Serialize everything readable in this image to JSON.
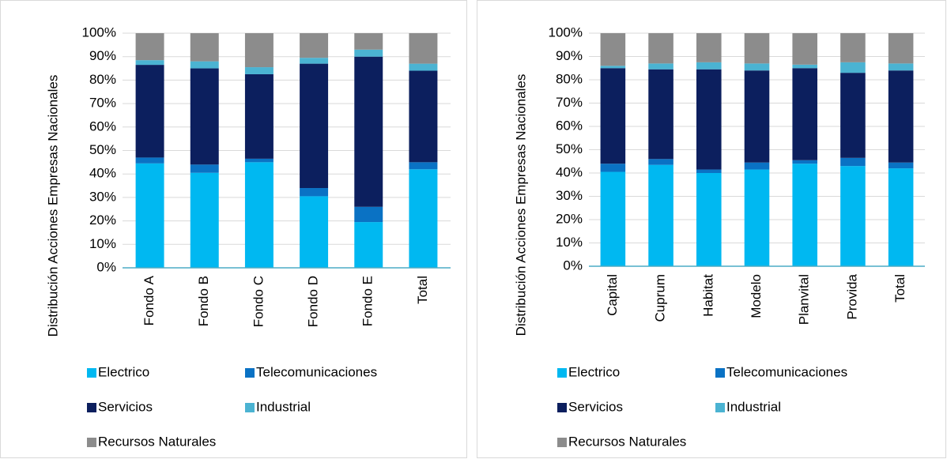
{
  "chart_data": [
    {
      "type": "bar",
      "stacked": true,
      "ylabel": "Distribución Acciones Empresas Nacionales",
      "categories": [
        "Fondo A",
        "Fondo B",
        "Fondo C",
        "Fondo D",
        "Fondo E",
        "Total"
      ],
      "series": [
        {
          "name": "Electrico",
          "color": "#00b8f1",
          "values": [
            44.5,
            40.5,
            45,
            30.5,
            19.5,
            42
          ]
        },
        {
          "name": "Telecomunicaciones",
          "color": "#0a72c4",
          "values": [
            2.5,
            3.5,
            1.5,
            3.5,
            6.5,
            3
          ]
        },
        {
          "name": "Servicios",
          "color": "#0c1f5e",
          "values": [
            39.5,
            41,
            36,
            53,
            64,
            39
          ]
        },
        {
          "name": "Industrial",
          "color": "#4bb3d2",
          "values": [
            2,
            3,
            3,
            2.5,
            3,
            3
          ]
        },
        {
          "name": "Recursos Naturales",
          "color": "#8c8c8c",
          "values": [
            11.5,
            12,
            14.5,
            10.5,
            7,
            13
          ]
        }
      ],
      "ylim": [
        0,
        100
      ],
      "yticks": [
        {
          "value": 0,
          "label": "0%"
        },
        {
          "value": 10,
          "label": "10%"
        },
        {
          "value": 20,
          "label": "20%"
        },
        {
          "value": 30,
          "label": "30%"
        },
        {
          "value": 40,
          "label": "40%"
        },
        {
          "value": 50,
          "label": "50%"
        },
        {
          "value": 60,
          "label": "60%"
        },
        {
          "value": 70,
          "label": "70%"
        },
        {
          "value": 80,
          "label": "80%"
        },
        {
          "value": 90,
          "label": "90%"
        },
        {
          "value": 100,
          "label": "100%"
        }
      ],
      "grid": true,
      "legend": "bottom"
    },
    {
      "type": "bar",
      "stacked": true,
      "ylabel": "Distribución Acciones Empresas Nacionales",
      "categories": [
        "Capital",
        "Cuprum",
        "Habitat",
        "Modelo",
        "Planvital",
        "Provida",
        "Total"
      ],
      "series": [
        {
          "name": "Electrico",
          "color": "#00b8f1",
          "values": [
            40.5,
            43.5,
            40,
            41.5,
            44,
            43,
            42
          ]
        },
        {
          "name": "Telecomunicaciones",
          "color": "#0a72c4",
          "values": [
            3.5,
            2.5,
            1.5,
            3,
            1.5,
            3.5,
            2.5
          ]
        },
        {
          "name": "Servicios",
          "color": "#0c1f5e",
          "values": [
            41,
            38.5,
            43,
            39.5,
            39.5,
            36.5,
            39.5
          ]
        },
        {
          "name": "Industrial",
          "color": "#4bb3d2",
          "values": [
            1,
            2.5,
            3,
            3,
            1.5,
            4.5,
            3
          ]
        },
        {
          "name": "Recursos Naturales",
          "color": "#8c8c8c",
          "values": [
            14,
            13,
            12.5,
            13,
            13.5,
            12.5,
            13
          ]
        }
      ],
      "ylim": [
        0,
        100
      ],
      "yticks": [
        {
          "value": 0,
          "label": "0%"
        },
        {
          "value": 10,
          "label": "10%"
        },
        {
          "value": 20,
          "label": "20%"
        },
        {
          "value": 30,
          "label": "30%"
        },
        {
          "value": 40,
          "label": "40%"
        },
        {
          "value": 50,
          "label": "50%"
        },
        {
          "value": 60,
          "label": "60%"
        },
        {
          "value": 70,
          "label": "70%"
        },
        {
          "value": 80,
          "label": "80%"
        },
        {
          "value": 90,
          "label": "90%"
        },
        {
          "value": 100,
          "label": "100%"
        }
      ],
      "grid": true,
      "legend": "bottom"
    }
  ]
}
